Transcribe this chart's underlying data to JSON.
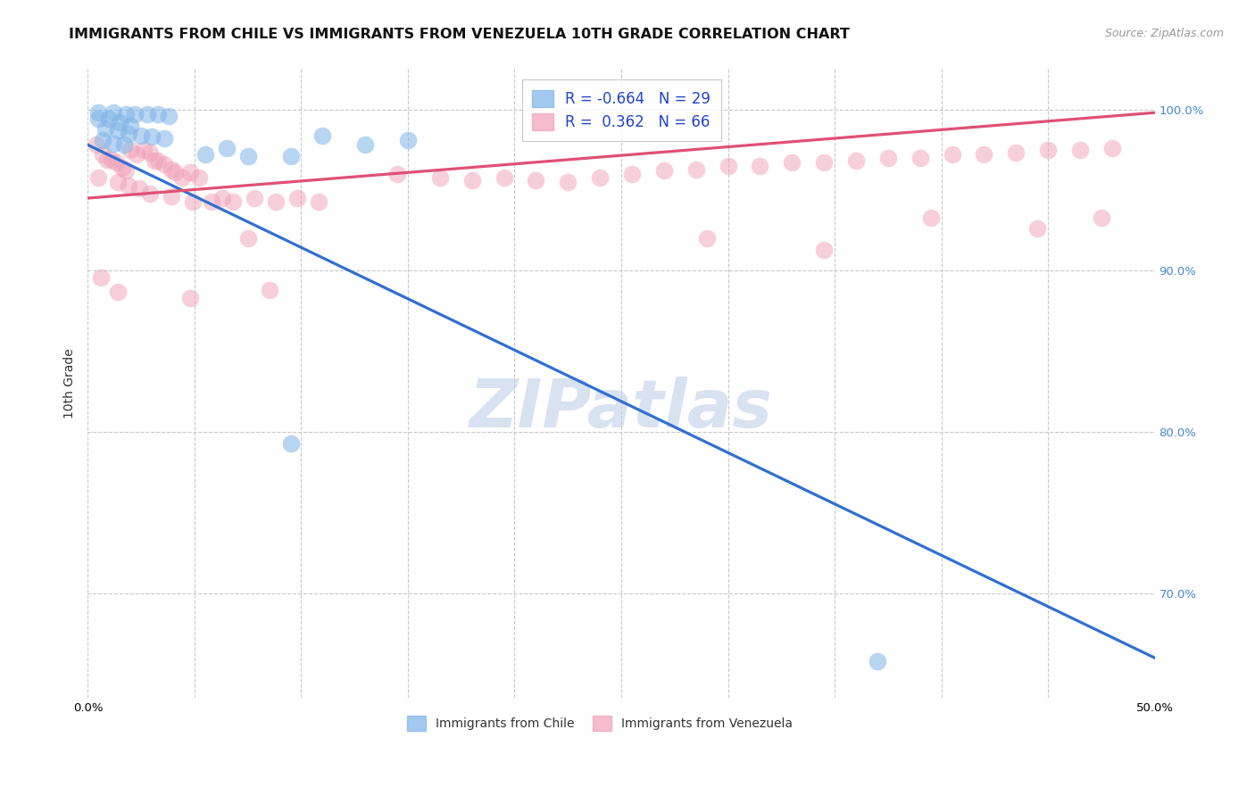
{
  "title": "IMMIGRANTS FROM CHILE VS IMMIGRANTS FROM VENEZUELA 10TH GRADE CORRELATION CHART",
  "source": "Source: ZipAtlas.com",
  "ylabel": "10th Grade",
  "chile_color": "#7eb3e8",
  "venezuela_color": "#f0a0b8",
  "chile_R": -0.664,
  "chile_N": 29,
  "venezuela_R": 0.362,
  "venezuela_N": 66,
  "xlim": [
    0.0,
    0.5
  ],
  "ylim": [
    0.635,
    1.025
  ],
  "ytick_positions": [
    1.0,
    0.9,
    0.8,
    0.7
  ],
  "xtick_positions": [
    0.0,
    0.05,
    0.1,
    0.15,
    0.2,
    0.25,
    0.3,
    0.35,
    0.4,
    0.45,
    0.5
  ],
  "chile_scatter": [
    [
      0.005,
      0.998
    ],
    [
      0.012,
      0.998
    ],
    [
      0.018,
      0.997
    ],
    [
      0.022,
      0.997
    ],
    [
      0.028,
      0.997
    ],
    [
      0.033,
      0.997
    ],
    [
      0.038,
      0.996
    ],
    [
      0.005,
      0.994
    ],
    [
      0.01,
      0.994
    ],
    [
      0.015,
      0.992
    ],
    [
      0.02,
      0.99
    ],
    [
      0.008,
      0.988
    ],
    [
      0.014,
      0.987
    ],
    [
      0.019,
      0.985
    ],
    [
      0.025,
      0.984
    ],
    [
      0.03,
      0.983
    ],
    [
      0.036,
      0.982
    ],
    [
      0.007,
      0.981
    ],
    [
      0.012,
      0.979
    ],
    [
      0.017,
      0.978
    ],
    [
      0.11,
      0.984
    ],
    [
      0.15,
      0.981
    ],
    [
      0.065,
      0.976
    ],
    [
      0.13,
      0.978
    ],
    [
      0.055,
      0.972
    ],
    [
      0.075,
      0.971
    ],
    [
      0.095,
      0.971
    ],
    [
      0.095,
      0.793
    ],
    [
      0.37,
      0.658
    ]
  ],
  "venezuela_scatter": [
    [
      0.004,
      0.978
    ],
    [
      0.007,
      0.972
    ],
    [
      0.009,
      0.969
    ],
    [
      0.011,
      0.969
    ],
    [
      0.013,
      0.967
    ],
    [
      0.016,
      0.964
    ],
    [
      0.018,
      0.962
    ],
    [
      0.02,
      0.975
    ],
    [
      0.023,
      0.972
    ],
    [
      0.026,
      0.975
    ],
    [
      0.029,
      0.973
    ],
    [
      0.031,
      0.968
    ],
    [
      0.033,
      0.968
    ],
    [
      0.036,
      0.966
    ],
    [
      0.039,
      0.963
    ],
    [
      0.041,
      0.961
    ],
    [
      0.044,
      0.958
    ],
    [
      0.048,
      0.961
    ],
    [
      0.052,
      0.958
    ],
    [
      0.005,
      0.958
    ],
    [
      0.014,
      0.955
    ],
    [
      0.019,
      0.953
    ],
    [
      0.024,
      0.951
    ],
    [
      0.029,
      0.948
    ],
    [
      0.039,
      0.946
    ],
    [
      0.049,
      0.943
    ],
    [
      0.058,
      0.943
    ],
    [
      0.063,
      0.945
    ],
    [
      0.068,
      0.943
    ],
    [
      0.078,
      0.945
    ],
    [
      0.088,
      0.943
    ],
    [
      0.098,
      0.945
    ],
    [
      0.108,
      0.943
    ],
    [
      0.145,
      0.96
    ],
    [
      0.165,
      0.958
    ],
    [
      0.18,
      0.956
    ],
    [
      0.195,
      0.958
    ],
    [
      0.21,
      0.956
    ],
    [
      0.225,
      0.955
    ],
    [
      0.24,
      0.958
    ],
    [
      0.255,
      0.96
    ],
    [
      0.27,
      0.962
    ],
    [
      0.285,
      0.963
    ],
    [
      0.3,
      0.965
    ],
    [
      0.315,
      0.965
    ],
    [
      0.33,
      0.967
    ],
    [
      0.345,
      0.967
    ],
    [
      0.36,
      0.968
    ],
    [
      0.375,
      0.97
    ],
    [
      0.39,
      0.97
    ],
    [
      0.405,
      0.972
    ],
    [
      0.42,
      0.972
    ],
    [
      0.435,
      0.973
    ],
    [
      0.45,
      0.975
    ],
    [
      0.465,
      0.975
    ],
    [
      0.48,
      0.976
    ],
    [
      0.006,
      0.896
    ],
    [
      0.048,
      0.883
    ],
    [
      0.014,
      0.887
    ],
    [
      0.075,
      0.92
    ],
    [
      0.085,
      0.888
    ],
    [
      0.29,
      0.92
    ],
    [
      0.345,
      0.913
    ],
    [
      0.395,
      0.933
    ],
    [
      0.445,
      0.926
    ],
    [
      0.475,
      0.933
    ]
  ],
  "chile_trend": [
    0.0,
    0.5,
    0.978,
    0.66
  ],
  "venezuela_trend": [
    0.0,
    0.5,
    0.945,
    0.998
  ],
  "background_color": "#ffffff",
  "grid_color": "#c8c8c8",
  "watermark": "ZIPatlas",
  "watermark_color": "#c0d0e8",
  "title_fontsize": 11.5,
  "source_fontsize": 9,
  "tick_fontsize": 9.5,
  "legend_fontsize": 12
}
